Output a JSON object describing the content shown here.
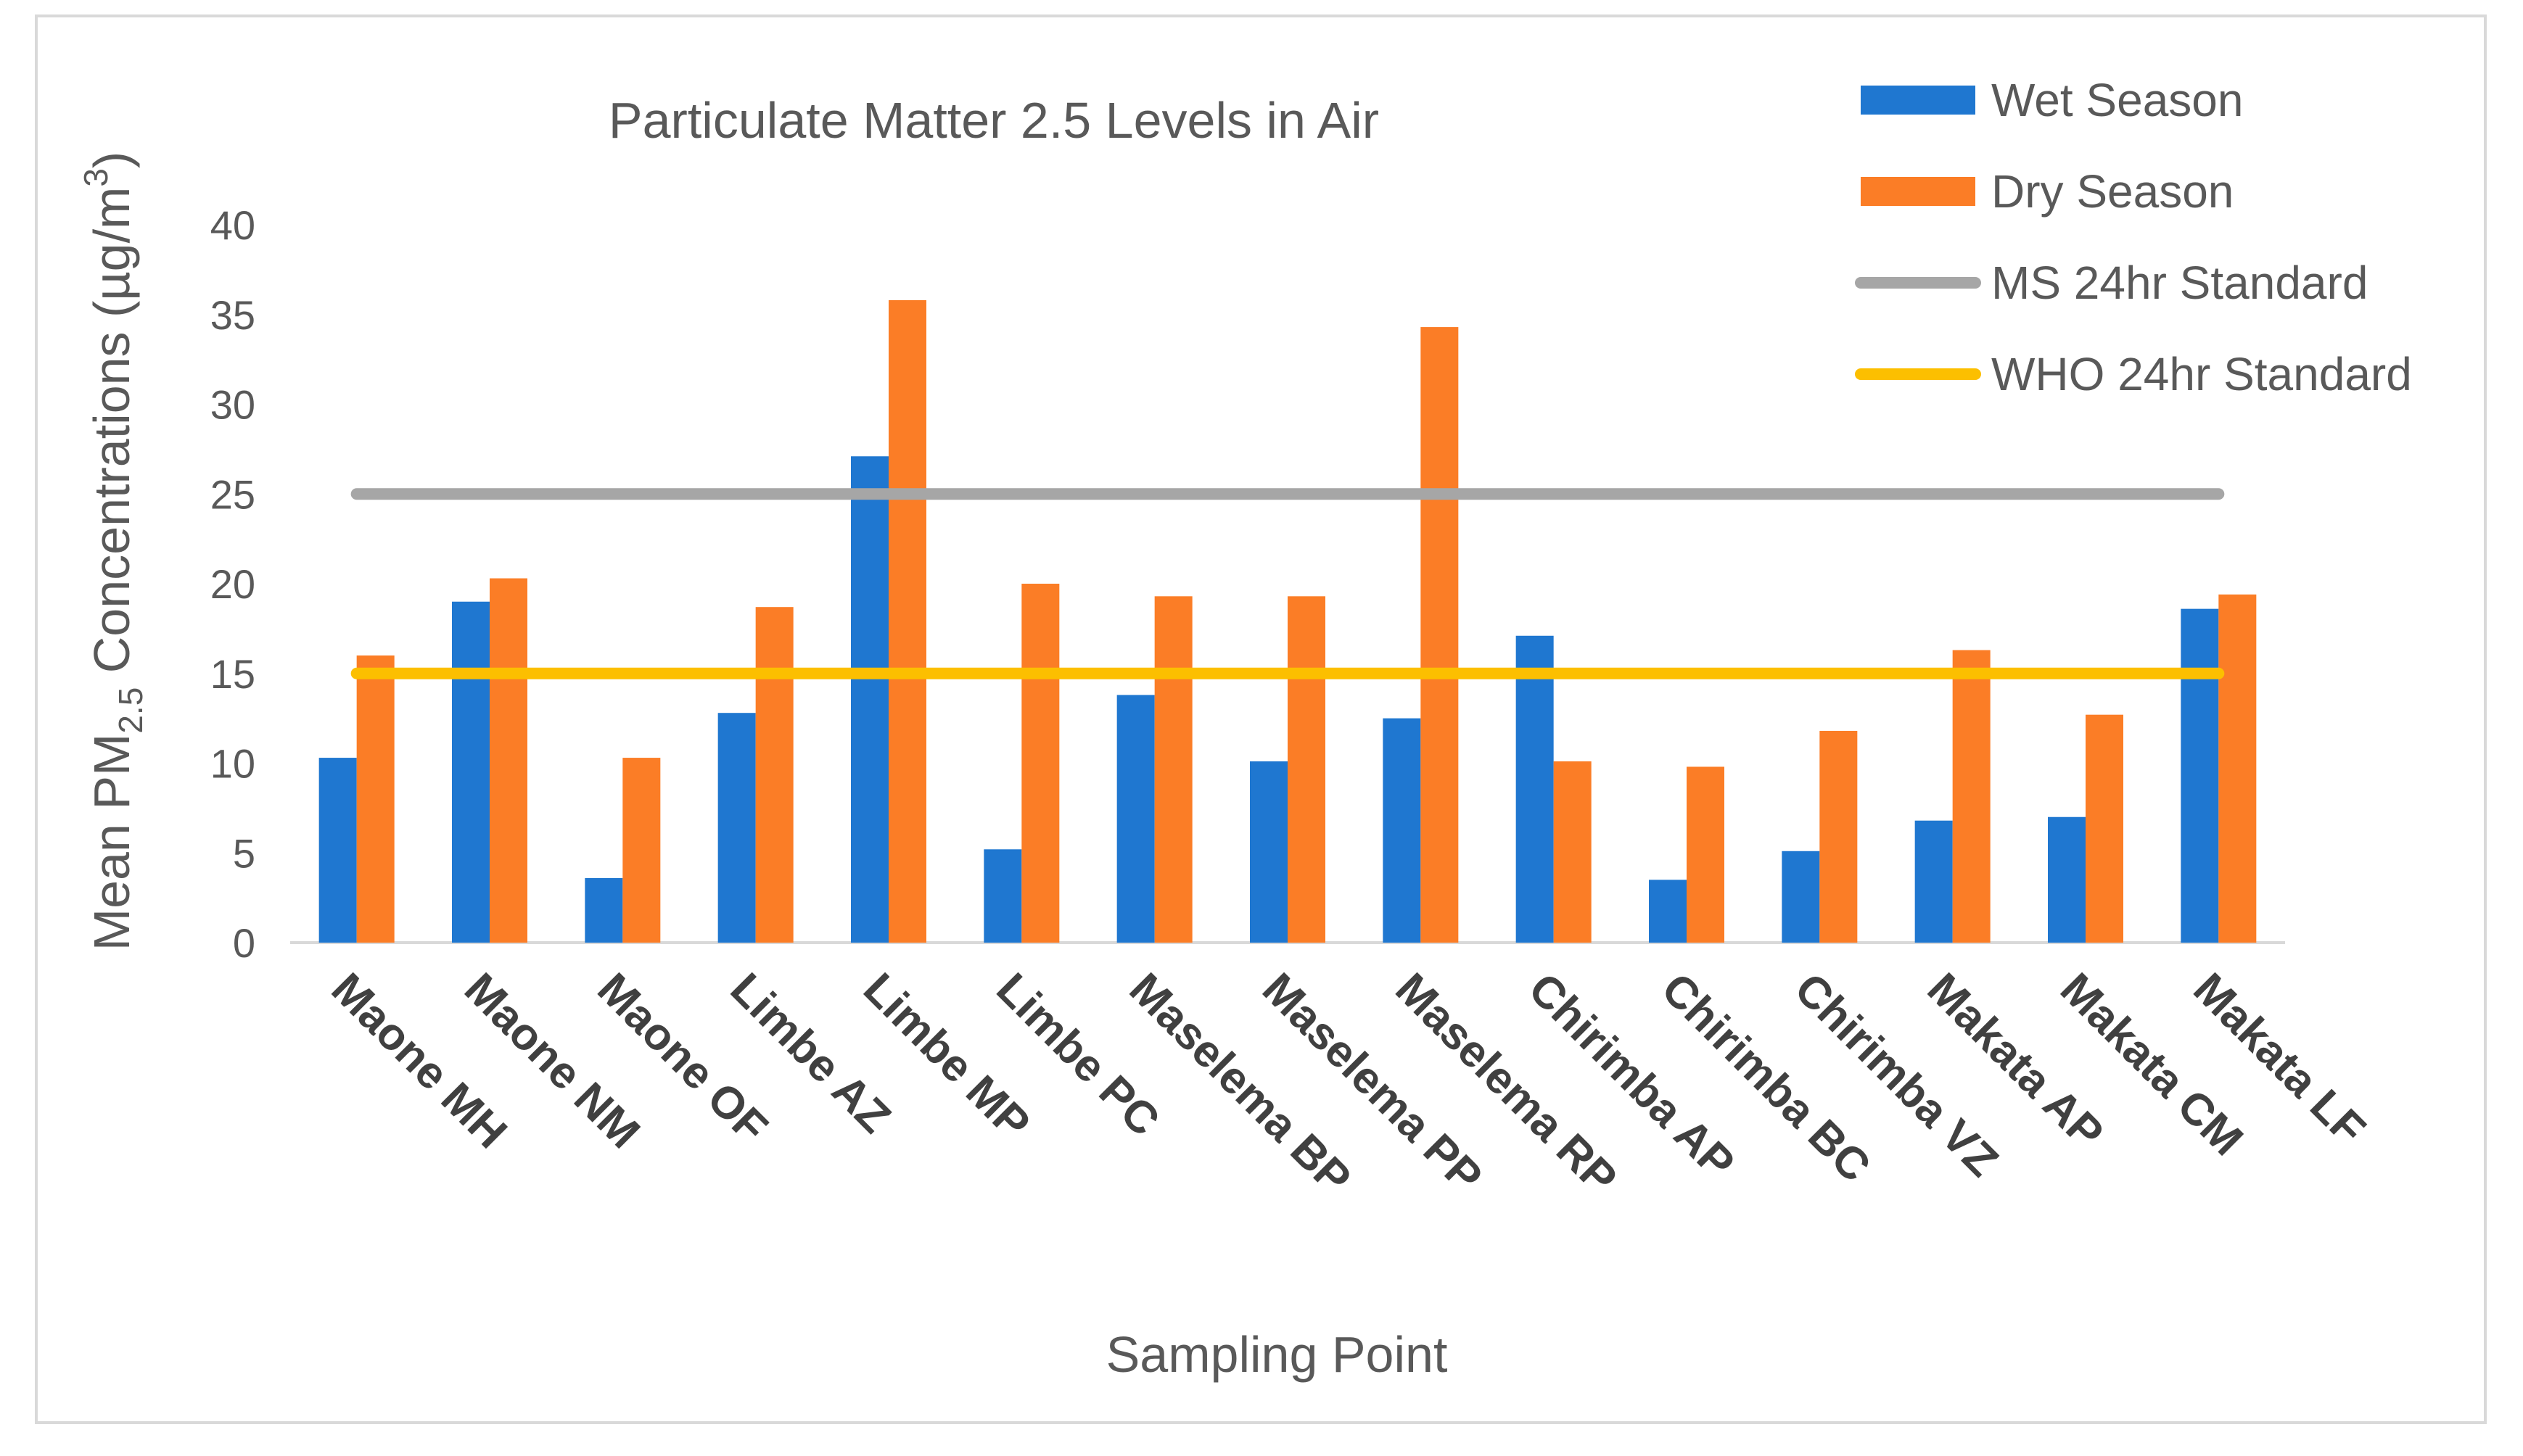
{
  "chart_data": {
    "type": "bar",
    "title": "Particulate Matter 2.5 Levels in Air",
    "xlabel": "Sampling Point",
    "ylabel": {
      "prefix": "Mean PM",
      "subscript": "2.5",
      "middle": " Concentrations (µg/m",
      "superscript": "3",
      "suffix": ")"
    },
    "ylim": [
      0,
      40
    ],
    "yticks": [
      0,
      5,
      10,
      15,
      20,
      25,
      30,
      35,
      40
    ],
    "categories": [
      "Maone MH",
      "Maone NM",
      "Maone OF",
      "Limbe AZ",
      "Limbe MP",
      "Limbe PC",
      "Maselema BP",
      "Maselema PP",
      "Maselema RP",
      "Chirimba AP",
      "Chirimba BC",
      "Chirimba VZ",
      "Makata AP",
      "Makata CM",
      "Makata LF"
    ],
    "series": [
      {
        "name": "Wet Season",
        "kind": "bar",
        "color": "#1f77d0",
        "values": [
          10.3,
          19.0,
          3.6,
          12.8,
          27.1,
          5.2,
          13.8,
          10.1,
          12.5,
          17.1,
          3.5,
          5.1,
          6.8,
          7.0,
          18.6
        ]
      },
      {
        "name": "Dry Season",
        "kind": "bar",
        "color": "#fb7d26",
        "values": [
          16.0,
          20.3,
          10.3,
          18.7,
          35.8,
          20.0,
          19.3,
          19.3,
          34.3,
          10.1,
          9.8,
          11.8,
          16.3,
          12.7,
          19.4
        ]
      },
      {
        "name": "MS 24hr Standard",
        "kind": "line",
        "color": "#a6a6a6",
        "value": 25
      },
      {
        "name": "WHO 24hr Standard",
        "kind": "line",
        "color": "#fcbf00",
        "value": 15
      }
    ],
    "legend": "top-right",
    "grid": false
  }
}
